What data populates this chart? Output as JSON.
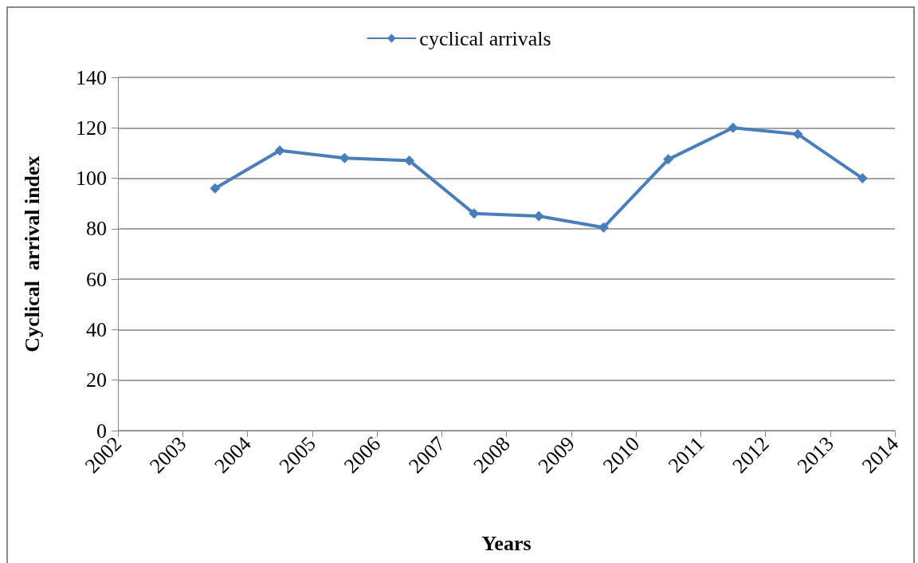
{
  "chart_data": {
    "type": "line",
    "xlabel": "Years",
    "ylabel": "Cyclical  arrival index",
    "x": [
      2003.5,
      2004.5,
      2005.5,
      2006.5,
      2007.5,
      2008.5,
      2009.5,
      2010.5,
      2011.5,
      2012.5,
      2013.5
    ],
    "series": [
      {
        "name": "cyclical arrivals",
        "color": "#4a7ebb",
        "values": [
          96,
          111,
          108,
          107,
          86,
          85,
          80.5,
          107.5,
          120,
          117.5,
          100
        ]
      }
    ],
    "xlim": [
      2002,
      2014
    ],
    "xticks": [
      2002,
      2003,
      2004,
      2005,
      2006,
      2007,
      2008,
      2009,
      2010,
      2011,
      2012,
      2013,
      2014
    ],
    "ylim": [
      0,
      140
    ],
    "yticks": [
      0,
      20,
      40,
      60,
      80,
      100,
      120,
      140
    ],
    "grid": "y",
    "legend": "top",
    "marker": "diamond",
    "line_style": "solid"
  }
}
